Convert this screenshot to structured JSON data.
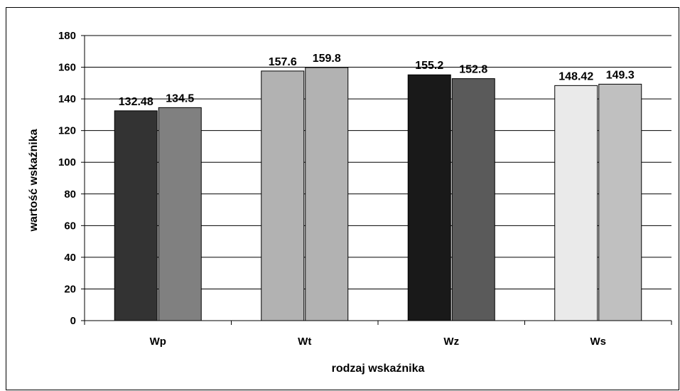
{
  "chart_data": {
    "type": "bar",
    "title": "",
    "xlabel": "rodzaj wskaźnika",
    "ylabel": "wartość wskaźnika",
    "ylim": [
      0,
      180
    ],
    "yticks": [
      0,
      20,
      40,
      60,
      80,
      100,
      120,
      140,
      160,
      180
    ],
    "grid": true,
    "legend": "none",
    "categories": [
      "Wp",
      "Wt",
      "Wz",
      "Ws"
    ],
    "bars": [
      {
        "category": "Wp",
        "values": [
          132.48,
          134.5
        ],
        "labels": [
          "132.48",
          "134.5"
        ],
        "colors": [
          "#333333",
          "#808080"
        ]
      },
      {
        "category": "Wt",
        "values": [
          157.6,
          159.8
        ],
        "labels": [
          "157.6",
          "159.8"
        ],
        "colors": [
          "#b2b2b2",
          "#b2b2b2"
        ]
      },
      {
        "category": "Wz",
        "values": [
          155.2,
          152.8
        ],
        "labels": [
          "155.2",
          "152.8"
        ],
        "colors": [
          "#191919",
          "#5a5a5a"
        ]
      },
      {
        "category": "Ws",
        "values": [
          148.42,
          149.3
        ],
        "labels": [
          "148.42",
          "149.3"
        ],
        "colors": [
          "#eaeaea",
          "#c0c0c0"
        ]
      }
    ]
  }
}
